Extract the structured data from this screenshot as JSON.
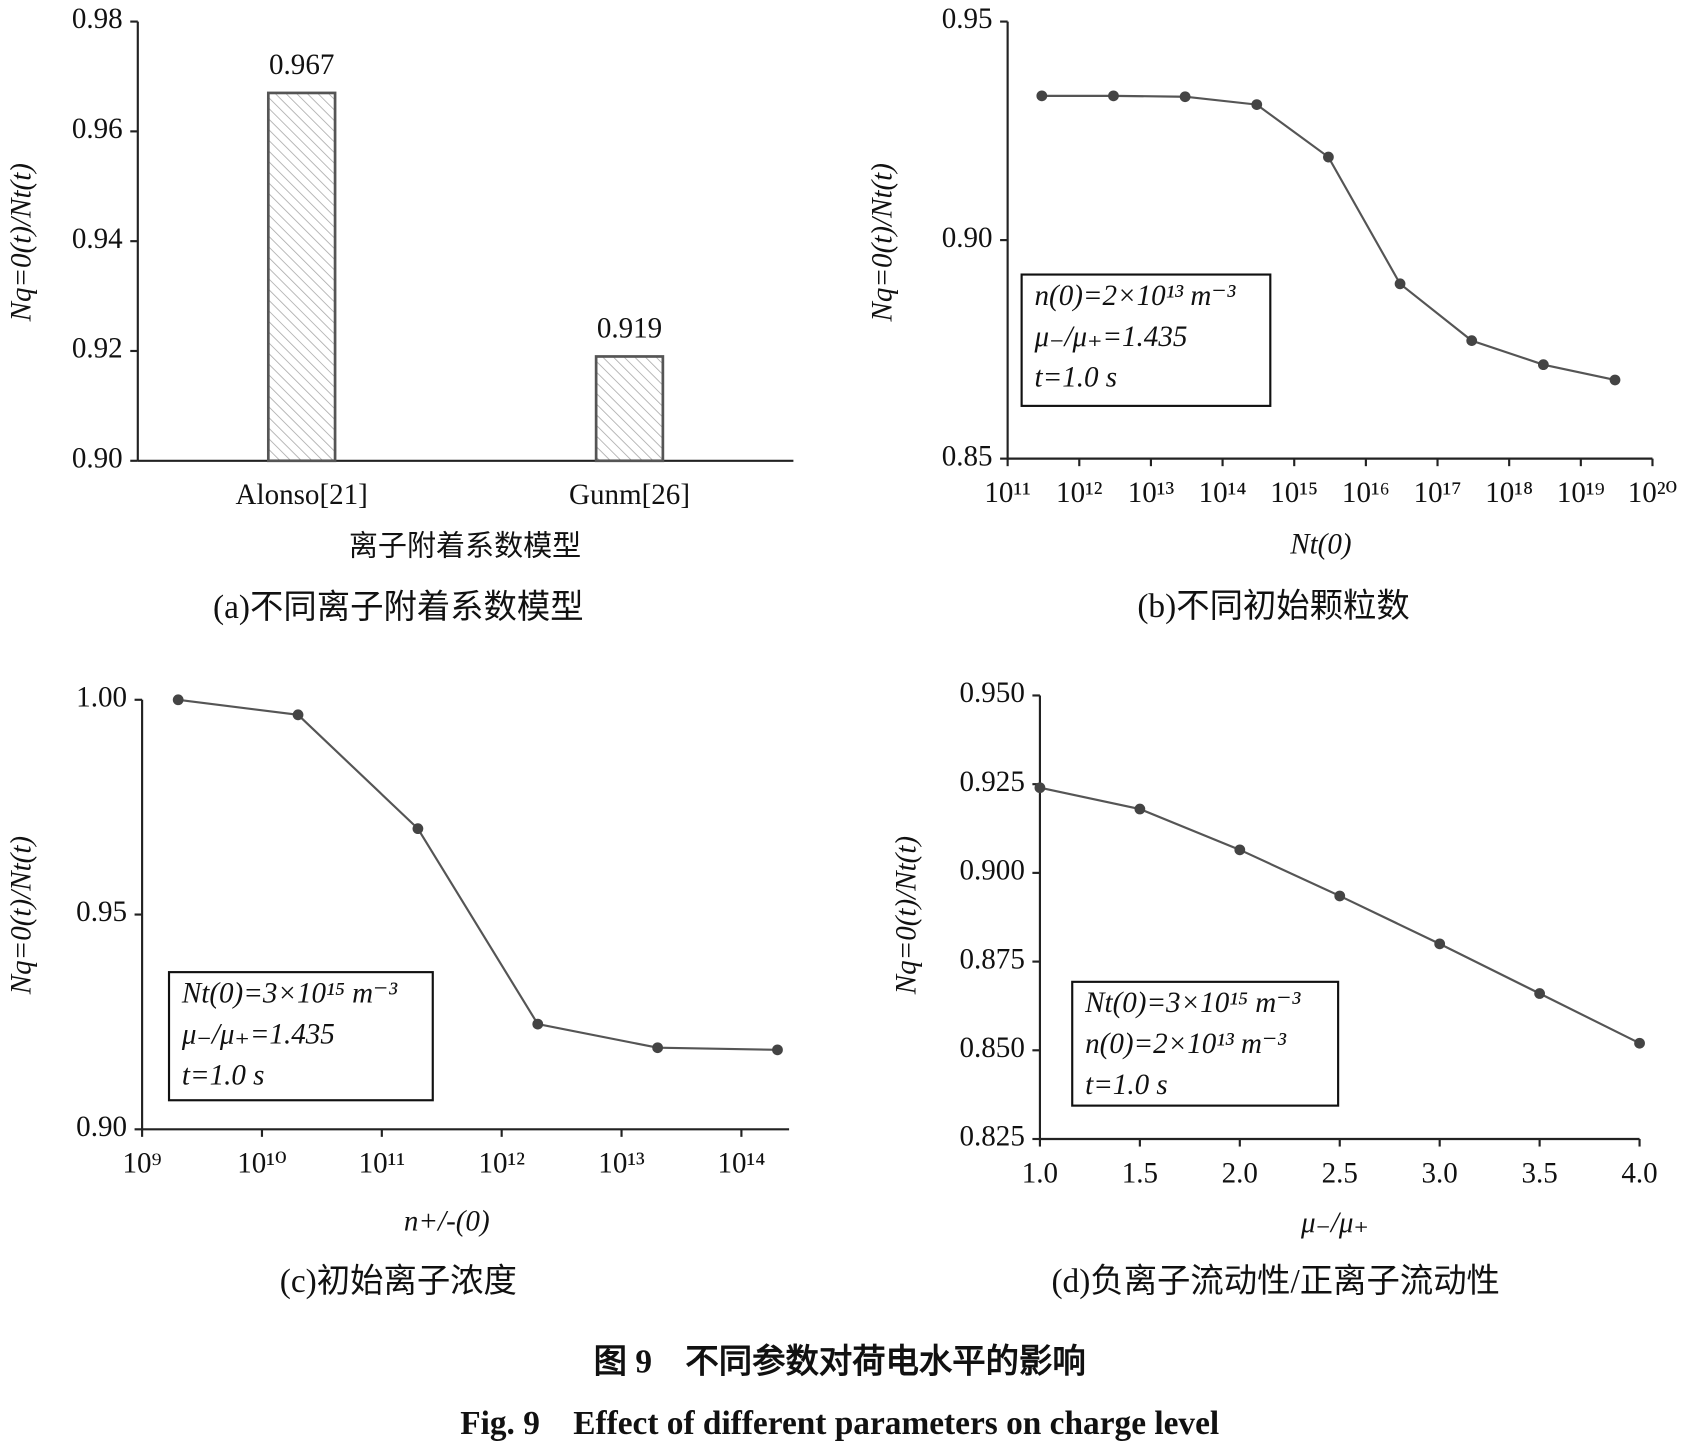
{
  "figure": {
    "title": "图 9　不同参数对荷电水平的影响",
    "title_en": "Fig. 9　Effect of different parameters on charge level"
  },
  "chart_data": [
    {
      "type": "bar",
      "caption": "(a)不同离子附着系数模型",
      "xlabel": "离子附着系数模型",
      "ylabel": "Nq=0(t)/Nt(t)",
      "categories": [
        "Alonso[21]",
        "Gunm[26]"
      ],
      "values": [
        0.967,
        0.919
      ],
      "value_labels": [
        "0.967",
        "0.919"
      ],
      "color": "#555555",
      "ylim": [
        0.9,
        0.98
      ],
      "yticks": [
        {
          "value": 0.9,
          "label": "0.90"
        },
        0.92,
        0.94,
        0.96,
        0.98
      ]
    },
    {
      "type": "line",
      "caption": "(b)不同初始颗粒数",
      "xlabel": "Nt(0)",
      "ylabel": "Nq=0(t)/Nt(t)",
      "xscale": "log",
      "color": "#555555",
      "x": [
        300000000000.0,
        3000000000000.0,
        30000000000000.0,
        300000000000000.0,
        3000000000000000.0,
        3e+16,
        3e+17,
        3e+18,
        3e+19
      ],
      "values": [
        0.933,
        0.933,
        0.9328,
        0.931,
        0.919,
        0.89,
        0.877,
        0.8715,
        0.868
      ],
      "xlim": [
        100000000000.0,
        1e+20
      ],
      "xticks": [
        {
          "value": 100000000000.0,
          "label": "10¹¹"
        },
        {
          "value": 1000000000000.0,
          "label": "10¹²"
        },
        {
          "value": 10000000000000.0,
          "label": "10¹³"
        },
        {
          "value": 100000000000000.0,
          "label": "10¹⁴"
        },
        {
          "value": 1000000000000000.0,
          "label": "10¹⁵"
        },
        {
          "value": 1e+16,
          "label": "10¹⁶"
        },
        {
          "value": 1e+17,
          "label": "10¹⁷"
        },
        {
          "value": 1e+18,
          "label": "10¹⁸"
        },
        {
          "value": 1e+19,
          "label": "10¹⁹"
        },
        {
          "value": 1e+20,
          "label": "10²⁰"
        }
      ],
      "ylim": [
        0.85,
        0.95
      ],
      "yticks": [
        0.85,
        {
          "value": 0.9,
          "label": "0.90"
        },
        0.95
      ],
      "annotations": [
        "n(0)=2×10¹³ m⁻³",
        "μ₋/μ₊=1.435",
        "t=1.0 s"
      ]
    },
    {
      "type": "line",
      "caption": "(c)初始离子浓度",
      "xlabel": "n+/-(0)",
      "ylabel": "Nq=0(t)/Nt(t)",
      "xscale": "log",
      "color": "#555555",
      "x": [
        2000000000.0,
        20000000000.0,
        200000000000.0,
        2000000000000.0,
        20000000000000.0,
        200000000000000.0
      ],
      "values": [
        1.0,
        0.9965,
        0.97,
        0.9245,
        0.919,
        0.9185
      ],
      "xlim": [
        1000000000.0,
        250000000000000.0
      ],
      "xticks": [
        {
          "value": 1000000000.0,
          "label": "10⁹"
        },
        {
          "value": 10000000000.0,
          "label": "10¹⁰"
        },
        {
          "value": 100000000000.0,
          "label": "10¹¹"
        },
        {
          "value": 1000000000000.0,
          "label": "10¹²"
        },
        {
          "value": 10000000000000.0,
          "label": "10¹³"
        },
        {
          "value": 100000000000000.0,
          "label": "10¹⁴"
        }
      ],
      "ylim": [
        0.9,
        1.0
      ],
      "yticks": [
        {
          "value": 0.9,
          "label": "0.90"
        },
        0.95,
        {
          "value": 1.0,
          "label": "1.00"
        }
      ],
      "annotations": [
        "Nt(0)=3×10¹⁵ m⁻³",
        "μ₋/μ₊=1.435",
        "t=1.0 s"
      ]
    },
    {
      "type": "line",
      "caption": "(d)负离子流动性/正离子流动性",
      "xlabel": "μ₋/μ₊",
      "ylabel": "Nq=0(t)/Nt(t)",
      "color": "#555555",
      "x": [
        1.0,
        1.5,
        2.0,
        2.5,
        3.0,
        3.5,
        4.0
      ],
      "values": [
        0.924,
        0.918,
        0.9065,
        0.8935,
        0.88,
        0.866,
        0.852
      ],
      "xlim": [
        1.0,
        4.0
      ],
      "xticks": [
        {
          "value": 1.0,
          "label": "1.0"
        },
        1.5,
        {
          "value": 2.0,
          "label": "2.0"
        },
        2.5,
        {
          "value": 3.0,
          "label": "3.0"
        },
        3.5,
        {
          "value": 4.0,
          "label": "4.0"
        }
      ],
      "ylim": [
        0.825,
        0.95
      ],
      "yticks": [
        0.825,
        {
          "value": 0.85,
          "label": "0.850"
        },
        0.875,
        {
          "value": 0.9,
          "label": "0.900"
        },
        0.925,
        {
          "value": 0.95,
          "label": "0.950"
        }
      ],
      "annotations": [
        "Nt(0)=3×10¹⁵ m⁻³",
        "n(0)=2×10¹³ m⁻³",
        "t=1.0 s"
      ]
    }
  ]
}
